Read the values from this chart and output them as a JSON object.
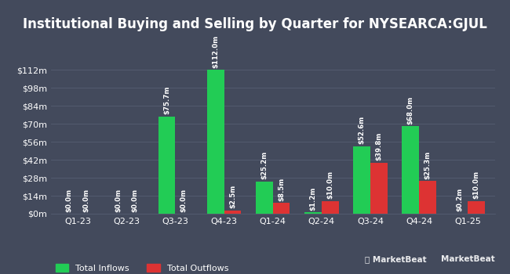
{
  "title": "Institutional Buying and Selling by Quarter for NYSEARCA:GJUL",
  "quarters": [
    "Q1-23",
    "Q2-23",
    "Q3-23",
    "Q4-23",
    "Q1-24",
    "Q2-24",
    "Q3-24",
    "Q4-24",
    "Q1-25"
  ],
  "inflows": [
    0.0,
    0.0,
    75.7,
    112.0,
    25.2,
    1.2,
    52.6,
    68.0,
    0.2
  ],
  "outflows": [
    0.0,
    0.0,
    0.0,
    2.5,
    8.5,
    10.0,
    39.8,
    25.3,
    10.0
  ],
  "inflow_labels": [
    "$0.0m",
    "$0.0m",
    "$75.7m",
    "$112.0m",
    "$25.2m",
    "$1.2m",
    "$52.6m",
    "$68.0m",
    "$0.2m"
  ],
  "outflow_labels": [
    "$0.0m",
    "$0.0m",
    "$0.0m",
    "$2.5m",
    "$8.5m",
    "$10.0m",
    "$39.8m",
    "$25.3m",
    "$10.0m"
  ],
  "inflow_color": "#22cc55",
  "outflow_color": "#dd3333",
  "bg_color": "#434a5c",
  "text_color": "#ffffff",
  "grid_color": "#555e72",
  "yticks": [
    0,
    14,
    28,
    42,
    56,
    70,
    84,
    98,
    112
  ],
  "ytick_labels": [
    "$0m",
    "$14m",
    "$28m",
    "$42m",
    "$56m",
    "$70m",
    "$84m",
    "$98m",
    "$112m"
  ],
  "ylim": [
    0,
    128
  ],
  "bar_width": 0.35,
  "legend_inflow": "Total Inflows",
  "legend_outflow": "Total Outflows",
  "title_fontsize": 12,
  "label_fontsize": 6.2,
  "tick_fontsize": 8,
  "legend_fontsize": 8
}
